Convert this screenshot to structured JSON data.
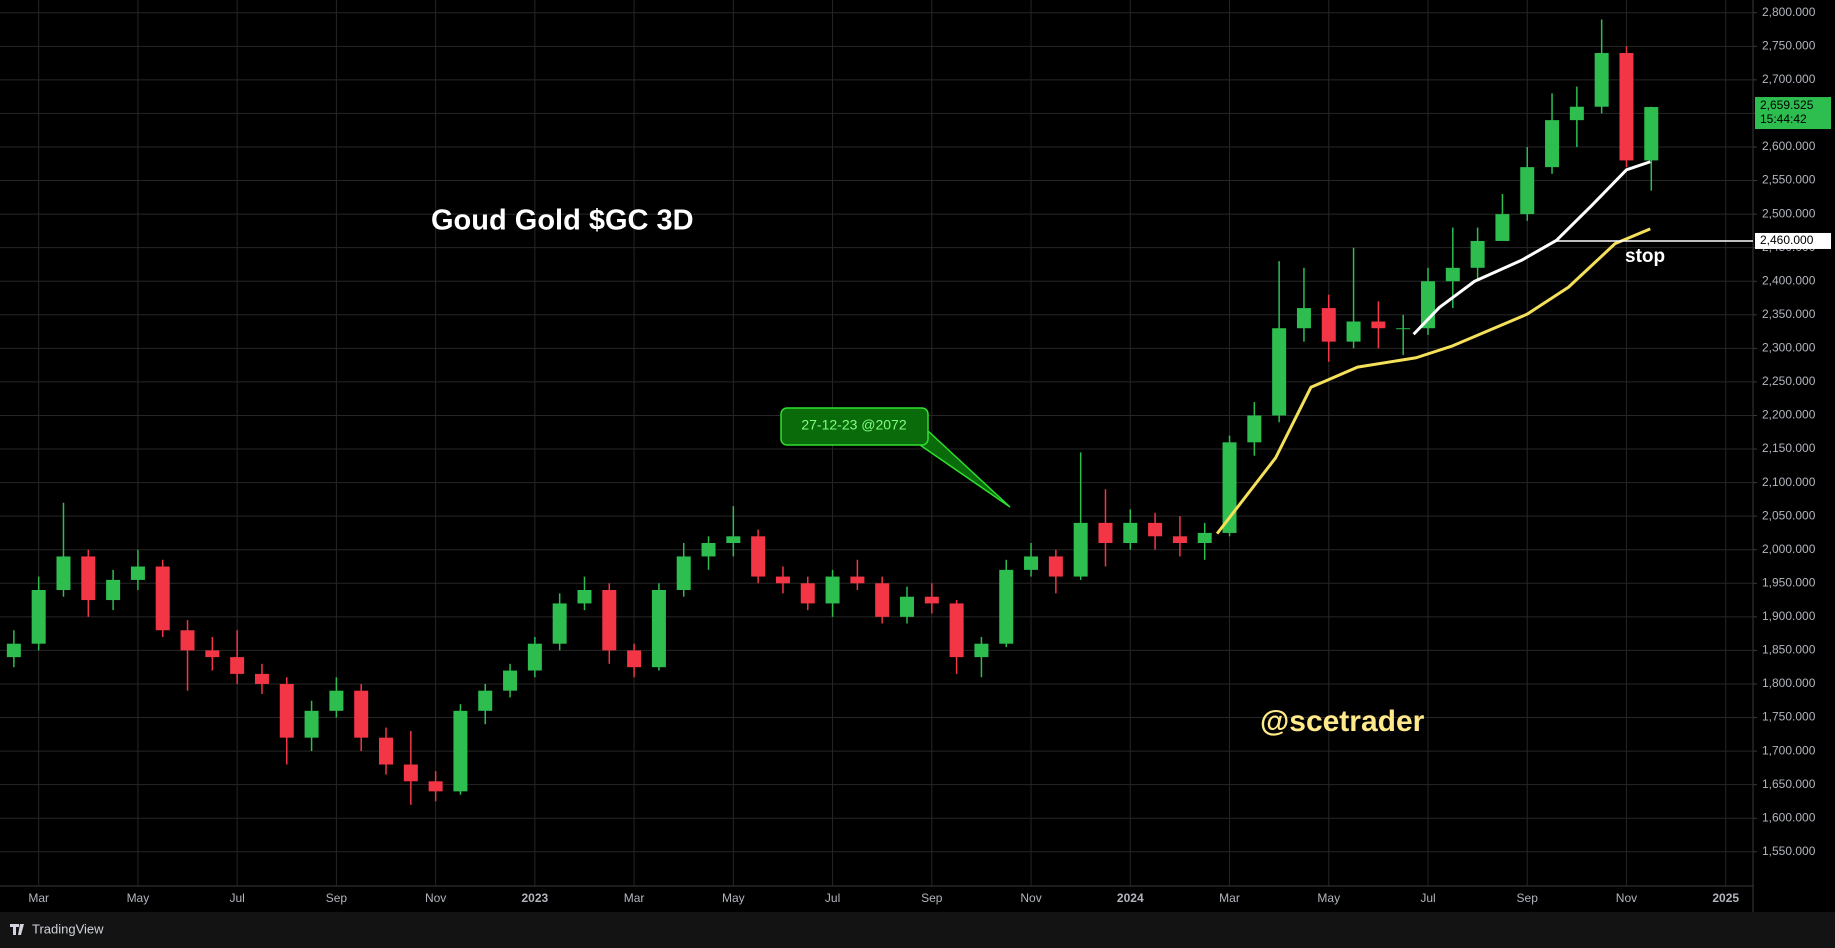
{
  "chart_data": {
    "type": "candlestick",
    "title": "Goud Gold $GC 3D",
    "watermark": "@scetrader",
    "annotation": "27-12-23 @2072",
    "branding": "TradingView",
    "up_color": "#2ebd4f",
    "down_color": "#f23645",
    "grid": true,
    "xlim": [
      1.41,
      36.55
    ],
    "ylim": [
      1499,
      2819
    ],
    "xticks": [
      {
        "value": 2,
        "label": "Mar"
      },
      {
        "value": 4,
        "label": "May"
      },
      {
        "value": 6,
        "label": "Jul"
      },
      {
        "value": 8,
        "label": "Sep"
      },
      {
        "value": 10,
        "label": "Nov"
      },
      {
        "value": 12,
        "label": "2023"
      },
      {
        "value": 14,
        "label": "Mar"
      },
      {
        "value": 16,
        "label": "May"
      },
      {
        "value": 18,
        "label": "Jul"
      },
      {
        "value": 20,
        "label": "Sep"
      },
      {
        "value": 22,
        "label": "Nov"
      },
      {
        "value": 24,
        "label": "2024"
      },
      {
        "value": 26,
        "label": "Mar"
      },
      {
        "value": 28,
        "label": "May"
      },
      {
        "value": 30,
        "label": "Jul"
      },
      {
        "value": 32,
        "label": "Sep"
      },
      {
        "value": 34,
        "label": "Nov"
      },
      {
        "value": 36,
        "label": "2025"
      }
    ],
    "yticks": [
      {
        "value": 1550,
        "label": "1,550.000"
      },
      {
        "value": 1600,
        "label": "1,600.000"
      },
      {
        "value": 1650,
        "label": "1,650.000"
      },
      {
        "value": 1700,
        "label": "1,700.000"
      },
      {
        "value": 1750,
        "label": "1,750.000"
      },
      {
        "value": 1800,
        "label": "1,800.000"
      },
      {
        "value": 1850,
        "label": "1,850.000"
      },
      {
        "value": 1900,
        "label": "1,900.000"
      },
      {
        "value": 1950,
        "label": "1,950.000"
      },
      {
        "value": 2000,
        "label": "2,000.000"
      },
      {
        "value": 2050,
        "label": "2,050.000"
      },
      {
        "value": 2100,
        "label": "2,100.000"
      },
      {
        "value": 2150,
        "label": "2,150.000"
      },
      {
        "value": 2200,
        "label": "2,200.000"
      },
      {
        "value": 2250,
        "label": "2,250.000"
      },
      {
        "value": 2300,
        "label": "2,300.000"
      },
      {
        "value": 2350,
        "label": "2,350.000"
      },
      {
        "value": 2400,
        "label": "2,400.000"
      },
      {
        "value": 2450,
        "label": "2,450.000"
      },
      {
        "value": 2500,
        "label": "2,500.000"
      },
      {
        "value": 2550,
        "label": "2,550.000"
      },
      {
        "value": 2600,
        "label": "2,600.000"
      },
      {
        "value": 2650,
        "label": "2,650.000"
      },
      {
        "value": 2700,
        "label": "2,700.000"
      },
      {
        "value": 2750,
        "label": "2,750.000"
      },
      {
        "value": 2800,
        "label": "2,800.000"
      }
    ],
    "x": [
      1.5,
      2,
      2.5,
      3,
      3.5,
      4,
      4.5,
      5,
      5.5,
      6,
      6.5,
      7,
      7.5,
      8,
      8.5,
      9,
      9.5,
      10,
      10.5,
      11,
      11.5,
      12,
      12.5,
      13,
      13.5,
      14,
      14.5,
      15,
      15.5,
      16,
      16.5,
      17,
      17.5,
      18,
      18.5,
      19,
      19.5,
      20,
      20.5,
      21,
      21.5,
      22,
      22.5,
      23,
      23.5,
      24,
      24.5,
      25,
      25.5,
      26,
      26.5,
      27,
      27.5,
      28,
      28.5,
      29,
      29.5,
      30,
      30.5,
      31,
      31.5,
      32,
      32.5,
      33,
      33.5,
      34,
      34.5
    ],
    "open": [
      1840,
      1860,
      1940,
      1990,
      1925,
      1955,
      1975,
      1880,
      1850,
      1840,
      1815,
      1800,
      1720,
      1760,
      1790,
      1720,
      1680,
      1655,
      1640,
      1760,
      1790,
      1820,
      1860,
      1920,
      1940,
      1850,
      1825,
      1940,
      1990,
      2010,
      2020,
      1960,
      1950,
      1920,
      1960,
      1950,
      1900,
      1930,
      1920,
      1840,
      1860,
      1970,
      1990,
      1960,
      2040,
      2010,
      2040,
      2020,
      2010,
      2025,
      2160,
      2200,
      2330,
      2360,
      2310,
      2340,
      2330,
      2330,
      2400,
      2420,
      2460,
      2500,
      2570,
      2640,
      2660,
      2740,
      2580
    ],
    "high": [
      1880,
      1960,
      2070,
      2000,
      1970,
      2000,
      1985,
      1895,
      1870,
      1880,
      1830,
      1810,
      1775,
      1810,
      1800,
      1735,
      1730,
      1670,
      1770,
      1800,
      1830,
      1870,
      1935,
      1960,
      1950,
      1860,
      1950,
      2010,
      2020,
      2065,
      2030,
      1975,
      1960,
      1970,
      1985,
      1960,
      1945,
      1950,
      1925,
      1870,
      1985,
      2010,
      2000,
      2145,
      2090,
      2060,
      2055,
      2050,
      2040,
      2170,
      2220,
      2430,
      2420,
      2380,
      2450,
      2370,
      2350,
      2420,
      2480,
      2480,
      2530,
      2600,
      2680,
      2690,
      2790,
      2750,
      2660
    ],
    "low": [
      1825,
      1850,
      1930,
      1900,
      1910,
      1940,
      1870,
      1790,
      1820,
      1800,
      1785,
      1680,
      1700,
      1750,
      1700,
      1665,
      1620,
      1625,
      1635,
      1740,
      1780,
      1810,
      1850,
      1910,
      1830,
      1810,
      1820,
      1930,
      1970,
      1990,
      1950,
      1935,
      1910,
      1900,
      1940,
      1890,
      1890,
      1905,
      1815,
      1810,
      1855,
      1960,
      1935,
      1955,
      1975,
      2000,
      2000,
      1990,
      1985,
      2020,
      2140,
      2190,
      2310,
      2280,
      2300,
      2300,
      2290,
      2320,
      2360,
      2400,
      2470,
      2490,
      2560,
      2600,
      2650,
      2570,
      2535
    ],
    "close": [
      1860,
      1940,
      1990,
      1925,
      1955,
      1975,
      1880,
      1850,
      1840,
      1815,
      1800,
      1720,
      1760,
      1790,
      1720,
      1680,
      1655,
      1640,
      1760,
      1790,
      1820,
      1860,
      1920,
      1940,
      1850,
      1825,
      1940,
      1990,
      2010,
      2020,
      1960,
      1950,
      1920,
      1960,
      1950,
      1900,
      1930,
      1920,
      1840,
      1860,
      1970,
      1990,
      1960,
      2040,
      2010,
      2040,
      2020,
      2010,
      2025,
      2160,
      2200,
      2330,
      2360,
      2310,
      2340,
      2330,
      2330,
      2400,
      2420,
      2460,
      2500,
      2570,
      2640,
      2660,
      2740,
      2580,
      2659.525
    ],
    "lines": [
      {
        "color": "#ffffff",
        "x": [
          29.71,
          30.23,
          30.94,
          31.88,
          32.59,
          33.3,
          34.0,
          34.48
        ],
        "values": [
          2321,
          2361,
          2400,
          2431,
          2461,
          2513,
          2566,
          2578
        ]
      },
      {
        "color": "#f5e05a",
        "x": [
          25.75,
          26.93,
          27.64,
          28.58,
          29.76,
          30.47,
          32.0,
          32.83,
          33.77,
          34.48
        ],
        "values": [
          2024,
          2137,
          2242,
          2272,
          2286,
          2303,
          2351,
          2391,
          2456,
          2478
        ]
      }
    ],
    "last_price": {
      "value": 2659.525,
      "label": "2,659.525",
      "countdown": "15:44:42"
    },
    "stop_line": {
      "value": 2460,
      "label": "2,460.000",
      "text": "stop"
    }
  }
}
